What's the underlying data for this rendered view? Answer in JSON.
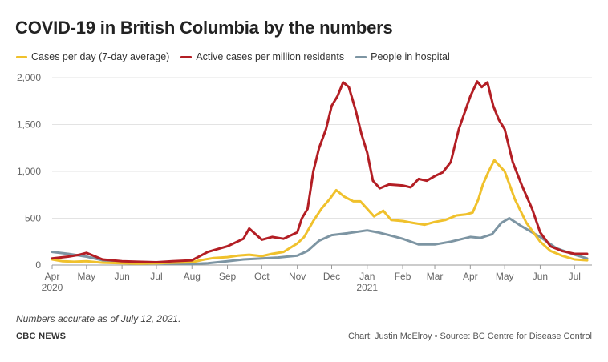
{
  "title": "COVID-19 in British Columbia by the numbers",
  "note": "Numbers accurate as of July 12, 2021.",
  "brand": "CBC NEWS",
  "credit": "Chart: Justin McElroy • Source: BC Centre for Disease Control",
  "legend": [
    {
      "label": "Cases per day (7-day average)",
      "color": "#f0c12c"
    },
    {
      "label": "Active cases per million residents",
      "color": "#b31e24"
    },
    {
      "label": "People in hospital",
      "color": "#7d95a3"
    }
  ],
  "chart_data": {
    "type": "line",
    "ylim": [
      0,
      2000
    ],
    "y_ticks": [
      "0",
      "500",
      "1,000",
      "1,500",
      "2,000"
    ],
    "y_tick_values": [
      0,
      500,
      1000,
      1500,
      2000
    ],
    "x_range": [
      "2020-04-01",
      "2021-07-12"
    ],
    "x_ticks": [
      {
        "date": "2020-04-01",
        "label": "Apr",
        "sub": "2020"
      },
      {
        "date": "2020-05-01",
        "label": "May"
      },
      {
        "date": "2020-06-01",
        "label": "Jun"
      },
      {
        "date": "2020-07-01",
        "label": "Jul"
      },
      {
        "date": "2020-08-01",
        "label": "Aug"
      },
      {
        "date": "2020-09-01",
        "label": "Sep"
      },
      {
        "date": "2020-10-01",
        "label": "Oct"
      },
      {
        "date": "2020-11-01",
        "label": "Nov"
      },
      {
        "date": "2020-12-01",
        "label": "Dec"
      },
      {
        "date": "2021-01-01",
        "label": "Jan",
        "sub": "2021"
      },
      {
        "date": "2021-02-01",
        "label": "Feb"
      },
      {
        "date": "2021-03-01",
        "label": "Mar"
      },
      {
        "date": "2021-04-01",
        "label": "Apr"
      },
      {
        "date": "2021-05-01",
        "label": "May"
      },
      {
        "date": "2021-06-01",
        "label": "Jun"
      },
      {
        "date": "2021-07-01",
        "label": "Jul"
      }
    ],
    "grid": true,
    "legend_position": "top-left",
    "series": [
      {
        "name": "Cases per day (7-day average)",
        "color": "#f0c12c",
        "x": [
          "2020-04-01",
          "2020-04-10",
          "2020-04-20",
          "2020-05-01",
          "2020-05-15",
          "2020-06-01",
          "2020-06-15",
          "2020-07-01",
          "2020-07-15",
          "2020-08-01",
          "2020-08-10",
          "2020-08-20",
          "2020-09-01",
          "2020-09-10",
          "2020-09-20",
          "2020-10-01",
          "2020-10-10",
          "2020-10-20",
          "2020-11-01",
          "2020-11-07",
          "2020-11-15",
          "2020-11-22",
          "2020-11-29",
          "2020-12-05",
          "2020-12-12",
          "2020-12-20",
          "2020-12-26",
          "2021-01-01",
          "2021-01-07",
          "2021-01-15",
          "2021-01-22",
          "2021-02-01",
          "2021-02-10",
          "2021-02-20",
          "2021-03-01",
          "2021-03-10",
          "2021-03-20",
          "2021-03-28",
          "2021-04-03",
          "2021-04-08",
          "2021-04-12",
          "2021-04-17",
          "2021-04-22",
          "2021-05-01",
          "2021-05-10",
          "2021-05-20",
          "2021-06-01",
          "2021-06-10",
          "2021-06-20",
          "2021-07-01",
          "2021-07-12"
        ],
        "y": [
          60,
          40,
          35,
          40,
          25,
          20,
          15,
          20,
          25,
          30,
          55,
          75,
          85,
          100,
          110,
          95,
          120,
          140,
          230,
          300,
          470,
          600,
          700,
          800,
          730,
          680,
          680,
          600,
          520,
          580,
          480,
          470,
          450,
          430,
          460,
          480,
          530,
          540,
          560,
          700,
          860,
          1000,
          1120,
          1000,
          700,
          450,
          250,
          150,
          100,
          60,
          50
        ]
      },
      {
        "name": "Active cases per million residents",
        "color": "#b31e24",
        "x": [
          "2020-04-01",
          "2020-04-15",
          "2020-04-25",
          "2020-05-01",
          "2020-05-15",
          "2020-06-01",
          "2020-06-15",
          "2020-07-01",
          "2020-07-15",
          "2020-08-01",
          "2020-08-15",
          "2020-09-01",
          "2020-09-15",
          "2020-09-20",
          "2020-10-01",
          "2020-10-10",
          "2020-10-20",
          "2020-11-01",
          "2020-11-05",
          "2020-11-10",
          "2020-11-15",
          "2020-11-20",
          "2020-11-26",
          "2020-12-01",
          "2020-12-06",
          "2020-12-11",
          "2020-12-16",
          "2020-12-22",
          "2020-12-27",
          "2021-01-01",
          "2021-01-06",
          "2021-01-12",
          "2021-01-20",
          "2021-02-01",
          "2021-02-08",
          "2021-02-15",
          "2021-02-22",
          "2021-03-01",
          "2021-03-08",
          "2021-03-15",
          "2021-03-22",
          "2021-04-01",
          "2021-04-07",
          "2021-04-11",
          "2021-04-16",
          "2021-04-21",
          "2021-04-26",
          "2021-05-01",
          "2021-05-08",
          "2021-05-16",
          "2021-05-25",
          "2021-06-01",
          "2021-06-10",
          "2021-06-20",
          "2021-07-01",
          "2021-07-12"
        ],
        "y": [
          70,
          90,
          110,
          130,
          60,
          40,
          35,
          30,
          40,
          50,
          140,
          200,
          280,
          390,
          270,
          300,
          280,
          350,
          500,
          600,
          1000,
          1250,
          1450,
          1700,
          1800,
          1950,
          1900,
          1650,
          1400,
          1200,
          900,
          820,
          860,
          850,
          830,
          920,
          900,
          950,
          990,
          1100,
          1450,
          1800,
          1960,
          1900,
          1950,
          1700,
          1550,
          1450,
          1100,
          850,
          600,
          350,
          200,
          150,
          120,
          120
        ]
      },
      {
        "name": "People in hospital",
        "color": "#7d95a3",
        "x": [
          "2020-04-01",
          "2020-04-15",
          "2020-05-01",
          "2020-05-15",
          "2020-06-01",
          "2020-07-01",
          "2020-08-01",
          "2020-08-15",
          "2020-09-01",
          "2020-09-15",
          "2020-10-01",
          "2020-10-15",
          "2020-11-01",
          "2020-11-10",
          "2020-11-20",
          "2020-12-01",
          "2020-12-15",
          "2021-01-01",
          "2021-01-10",
          "2021-01-20",
          "2021-02-01",
          "2021-02-15",
          "2021-03-01",
          "2021-03-15",
          "2021-04-01",
          "2021-04-10",
          "2021-04-20",
          "2021-04-28",
          "2021-05-05",
          "2021-05-15",
          "2021-06-01",
          "2021-06-15",
          "2021-07-01",
          "2021-07-12"
        ],
        "y": [
          140,
          120,
          90,
          50,
          30,
          20,
          10,
          20,
          40,
          60,
          70,
          80,
          100,
          150,
          260,
          320,
          340,
          370,
          350,
          320,
          280,
          220,
          220,
          250,
          300,
          290,
          330,
          450,
          500,
          420,
          300,
          180,
          110,
          70
        ]
      }
    ]
  }
}
